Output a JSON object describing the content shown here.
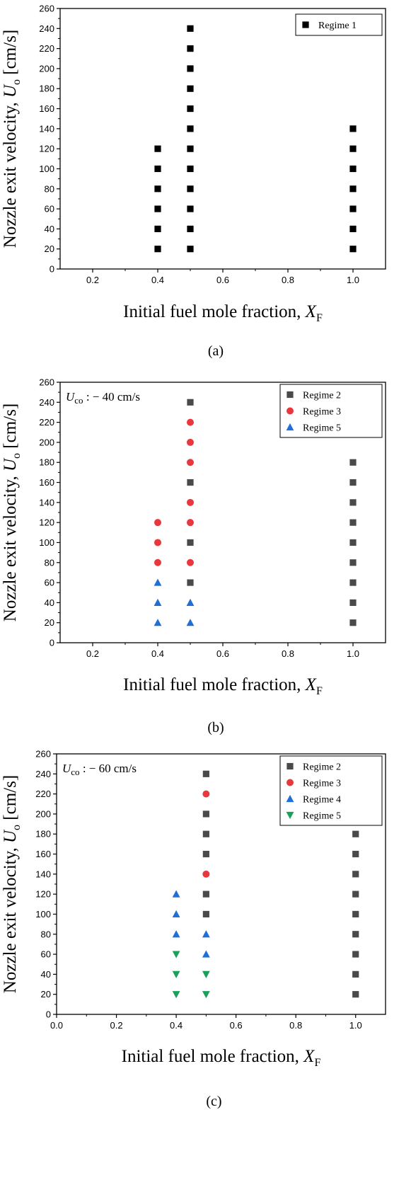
{
  "chart_data": [
    {
      "type": "scatter",
      "caption": "(a)",
      "annotation": null,
      "xlabel": {
        "main": "Initial fuel mole fraction, ",
        "var": "X",
        "sub": "F"
      },
      "ylabel": {
        "main": "Nozzle exit velocity, ",
        "var": "U",
        "sub": "o",
        "unit": " [cm/s]"
      },
      "xlim": [
        0.1,
        1.1
      ],
      "xticks": [
        0.2,
        0.4,
        0.6,
        0.8,
        1.0
      ],
      "xtick_labels": [
        "0.2",
        "0.4",
        "0.6",
        "0.8",
        "1.0"
      ],
      "ylim": [
        0,
        260
      ],
      "yticks": [
        0,
        20,
        40,
        60,
        80,
        100,
        120,
        140,
        160,
        180,
        200,
        220,
        240,
        260
      ],
      "legend_position": "top-right",
      "series": [
        {
          "name": "Regime 1",
          "marker": "square",
          "color": "#000000",
          "points": [
            [
              0.4,
              20
            ],
            [
              0.4,
              40
            ],
            [
              0.4,
              60
            ],
            [
              0.4,
              80
            ],
            [
              0.4,
              100
            ],
            [
              0.4,
              120
            ],
            [
              0.5,
              20
            ],
            [
              0.5,
              40
            ],
            [
              0.5,
              60
            ],
            [
              0.5,
              80
            ],
            [
              0.5,
              100
            ],
            [
              0.5,
              120
            ],
            [
              0.5,
              140
            ],
            [
              0.5,
              160
            ],
            [
              0.5,
              180
            ],
            [
              0.5,
              200
            ],
            [
              0.5,
              220
            ],
            [
              0.5,
              240
            ],
            [
              1.0,
              20
            ],
            [
              1.0,
              40
            ],
            [
              1.0,
              60
            ],
            [
              1.0,
              80
            ],
            [
              1.0,
              100
            ],
            [
              1.0,
              120
            ],
            [
              1.0,
              140
            ]
          ]
        }
      ]
    },
    {
      "type": "scatter",
      "caption": "(b)",
      "annotation": {
        "var": "U",
        "sub": "co",
        "text": " : − 40 cm/s"
      },
      "xlabel": {
        "main": "Initial fuel mole fraction, ",
        "var": "X",
        "sub": "F"
      },
      "ylabel": {
        "main": "Nozzle exit velocity, ",
        "var": "U",
        "sub": "o",
        "unit": " [cm/s]"
      },
      "xlim": [
        0.1,
        1.1
      ],
      "xticks": [
        0.2,
        0.4,
        0.6,
        0.8,
        1.0
      ],
      "xtick_labels": [
        "0.2",
        "0.4",
        "0.6",
        "0.8",
        "1.0"
      ],
      "ylim": [
        0,
        260
      ],
      "yticks": [
        0,
        20,
        40,
        60,
        80,
        100,
        120,
        140,
        160,
        180,
        200,
        220,
        240,
        260
      ],
      "legend_position": "top-right",
      "series": [
        {
          "name": "Regime 2",
          "marker": "square",
          "color": "#4a4a4a",
          "points": [
            [
              0.5,
              60
            ],
            [
              0.5,
              100
            ],
            [
              0.5,
              160
            ],
            [
              0.5,
              240
            ],
            [
              1.0,
              20
            ],
            [
              1.0,
              40
            ],
            [
              1.0,
              60
            ],
            [
              1.0,
              80
            ],
            [
              1.0,
              100
            ],
            [
              1.0,
              120
            ],
            [
              1.0,
              140
            ],
            [
              1.0,
              160
            ],
            [
              1.0,
              180
            ]
          ]
        },
        {
          "name": "Regime 3",
          "marker": "circle",
          "color": "#e8383d",
          "points": [
            [
              0.4,
              80
            ],
            [
              0.4,
              100
            ],
            [
              0.4,
              120
            ],
            [
              0.5,
              80
            ],
            [
              0.5,
              120
            ],
            [
              0.5,
              140
            ],
            [
              0.5,
              180
            ],
            [
              0.5,
              200
            ],
            [
              0.5,
              220
            ]
          ]
        },
        {
          "name": "Regime 5",
          "marker": "triangle-up",
          "color": "#1f6fd6",
          "points": [
            [
              0.4,
              20
            ],
            [
              0.4,
              40
            ],
            [
              0.4,
              60
            ],
            [
              0.5,
              20
            ],
            [
              0.5,
              40
            ]
          ]
        }
      ]
    },
    {
      "type": "scatter",
      "caption": "(c)",
      "annotation": {
        "var": "U",
        "sub": "co",
        "text": " : − 60 cm/s"
      },
      "xlabel": {
        "main": "Initial fuel mole fraction, ",
        "var": "X",
        "sub": "F"
      },
      "ylabel": {
        "main": "Nozzle exit velocity, ",
        "var": "U",
        "sub": "o",
        "unit": " [cm/s]"
      },
      "xlim": [
        0.0,
        1.1
      ],
      "xticks": [
        0.0,
        0.2,
        0.4,
        0.6,
        0.8,
        1.0
      ],
      "xtick_labels": [
        "0.0",
        "0.2",
        "0.4",
        "0.6",
        "0.8",
        "1.0"
      ],
      "ylim": [
        0,
        260
      ],
      "yticks": [
        0,
        20,
        40,
        60,
        80,
        100,
        120,
        140,
        160,
        180,
        200,
        220,
        240,
        260
      ],
      "legend_position": "top-right",
      "series": [
        {
          "name": "Regime 2",
          "marker": "square",
          "color": "#4a4a4a",
          "points": [
            [
              0.5,
              100
            ],
            [
              0.5,
              120
            ],
            [
              0.5,
              160
            ],
            [
              0.5,
              180
            ],
            [
              0.5,
              200
            ],
            [
              0.5,
              240
            ],
            [
              1.0,
              20
            ],
            [
              1.0,
              40
            ],
            [
              1.0,
              60
            ],
            [
              1.0,
              80
            ],
            [
              1.0,
              100
            ],
            [
              1.0,
              120
            ],
            [
              1.0,
              140
            ],
            [
              1.0,
              160
            ],
            [
              1.0,
              180
            ]
          ]
        },
        {
          "name": "Regime 3",
          "marker": "circle",
          "color": "#e8383d",
          "points": [
            [
              0.5,
              140
            ],
            [
              0.5,
              220
            ]
          ]
        },
        {
          "name": "Regime 4",
          "marker": "triangle-up",
          "color": "#1f6fd6",
          "points": [
            [
              0.4,
              80
            ],
            [
              0.4,
              100
            ],
            [
              0.4,
              120
            ],
            [
              0.5,
              60
            ],
            [
              0.5,
              80
            ]
          ]
        },
        {
          "name": "Regime 5",
          "marker": "triangle-down",
          "color": "#1aa05a",
          "points": [
            [
              0.4,
              20
            ],
            [
              0.4,
              40
            ],
            [
              0.4,
              60
            ],
            [
              0.5,
              20
            ],
            [
              0.5,
              40
            ]
          ]
        }
      ]
    }
  ]
}
